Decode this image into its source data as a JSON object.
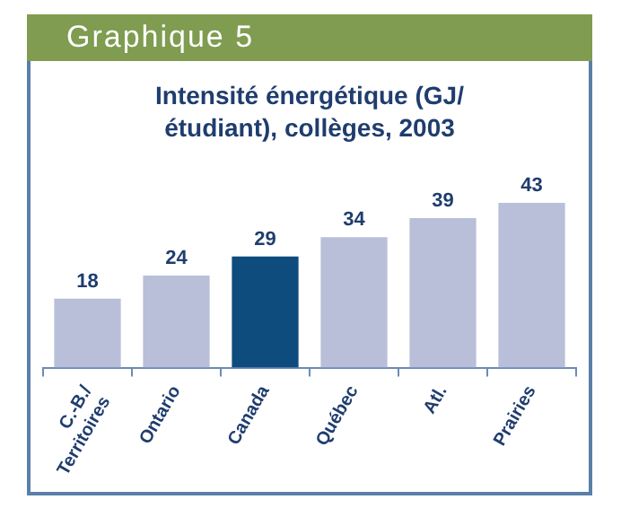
{
  "chart_data": {
    "type": "bar",
    "title": "Intensité énergétique (GJ/étudiant), collèges, 2003",
    "annotations": [
      "Graphique 5"
    ],
    "categories": [
      "C.-B./ Territoires",
      "Ontario",
      "Canada",
      "Québec",
      "Atl.",
      "Prairies"
    ],
    "values": [
      18,
      24,
      29,
      34,
      39,
      43
    ],
    "colors": [
      "#b9bfd8",
      "#b9bfd8",
      "#0e4c7e",
      "#b9bfd8",
      "#b9bfd8",
      "#b9bfd8"
    ],
    "data_labels": true,
    "grid": false,
    "legend": false
  }
}
